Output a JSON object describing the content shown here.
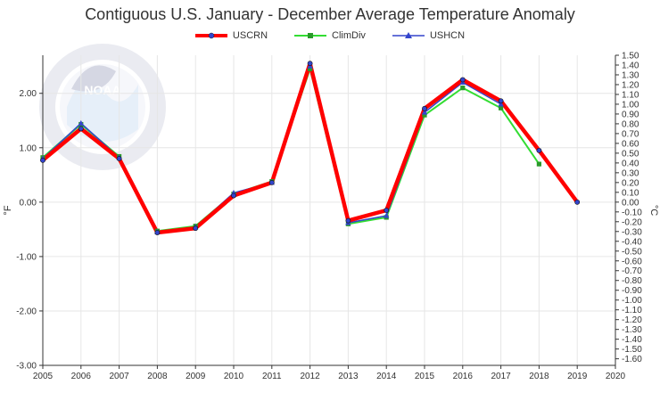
{
  "chart_data": {
    "type": "line",
    "title": "Contiguous U.S. January - December Average Temperature Anomaly",
    "ylabel_left": "°F",
    "ylabel_right": "°C",
    "x": [
      2005,
      2006,
      2007,
      2008,
      2009,
      2010,
      2011,
      2012,
      2013,
      2014,
      2015,
      2016,
      2017,
      2018,
      2019
    ],
    "xlim": [
      2005,
      2020
    ],
    "x_ticks": [
      "2005",
      "2006",
      "2007",
      "2008",
      "2009",
      "2010",
      "2011",
      "2012",
      "2013",
      "2014",
      "2015",
      "2016",
      "2017",
      "2018",
      "2019",
      "2020"
    ],
    "ylim_left": [
      -3.0,
      2.7
    ],
    "y_ticks_left": [
      "2.00",
      "1.00",
      "0.00",
      "-1.00",
      "-2.00",
      "-3.00"
    ],
    "ylim_right": [
      -1.667,
      1.5
    ],
    "y_ticks_right": [
      "1.50",
      "1.40",
      "1.30",
      "1.20",
      "1.10",
      "1.00",
      "0.90",
      "0.80",
      "0.70",
      "0.60",
      "0.50",
      "0.40",
      "0.30",
      "0.20",
      "0.10",
      "0.00",
      "-0.10",
      "-0.20",
      "-0.30",
      "-0.40",
      "-0.50",
      "-0.60",
      "-0.70",
      "-0.80",
      "-0.90",
      "-1.00",
      "-1.10",
      "-1.20",
      "-1.30",
      "-1.40",
      "-1.50",
      "-1.60"
    ],
    "grid": true,
    "legend_position": "top-center",
    "series": [
      {
        "name": "USCRN",
        "color": "#ff0000",
        "marker": "circle",
        "values": [
          0.77,
          1.35,
          0.8,
          -0.56,
          -0.48,
          0.12,
          0.36,
          2.55,
          -0.34,
          -0.15,
          1.72,
          2.25,
          1.86,
          0.95,
          0.0
        ]
      },
      {
        "name": "ClimDiv",
        "color": "#33dd33",
        "marker": "square",
        "values": [
          0.82,
          1.43,
          0.84,
          -0.53,
          -0.44,
          0.15,
          0.38,
          2.45,
          -0.4,
          -0.28,
          1.6,
          2.1,
          1.73,
          0.7,
          null
        ]
      },
      {
        "name": "USHCN",
        "color": "#3344cc",
        "marker": "triangle",
        "values": [
          0.8,
          1.45,
          0.82,
          -0.55,
          -0.46,
          0.17,
          0.36,
          2.5,
          -0.38,
          -0.25,
          1.65,
          2.2,
          1.8,
          null,
          null
        ]
      }
    ]
  }
}
